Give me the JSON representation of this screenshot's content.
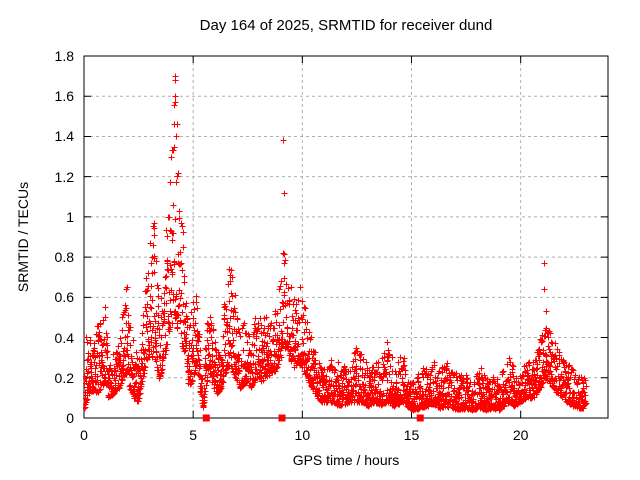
{
  "chart_data": {
    "type": "scatter",
    "title": "Day 164 of 2025, SRMTID for receiver dund",
    "xlabel": "GPS time / hours",
    "ylabel": "SRMTID / TECUs",
    "xlim": [
      0,
      24
    ],
    "ylim": [
      0,
      1.8
    ],
    "xticks": [
      0,
      5,
      10,
      15,
      20
    ],
    "xtick_labels": [
      "0",
      "5",
      "10",
      "15",
      "20"
    ],
    "yticks": [
      0,
      0.2,
      0.4,
      0.6,
      0.8,
      1.0,
      1.2,
      1.4,
      1.6,
      1.8
    ],
    "ytick_labels": [
      "0",
      "0.2",
      "0.4",
      "0.6",
      "0.8",
      "1",
      "1.2",
      "1.4",
      "1.6",
      "1.8"
    ],
    "grid": true,
    "legend": "none",
    "marker": "plus",
    "series_color": "#ff0000",
    "grid_color": "#b0b0b0",
    "border_color": "#000000",
    "sample_step_hours": 0.008,
    "envelope_t_lo_hi": [
      [
        0.0,
        0.03,
        0.42
      ],
      [
        0.25,
        0.14,
        0.38
      ],
      [
        0.55,
        0.12,
        0.45
      ],
      [
        0.8,
        0.15,
        0.5
      ],
      [
        0.95,
        0.18,
        0.55
      ],
      [
        1.1,
        0.1,
        0.33
      ],
      [
        1.35,
        0.12,
        0.34
      ],
      [
        1.6,
        0.15,
        0.38
      ],
      [
        1.8,
        0.2,
        0.55
      ],
      [
        1.95,
        0.22,
        0.66
      ],
      [
        2.1,
        0.15,
        0.6
      ],
      [
        2.3,
        0.1,
        0.36
      ],
      [
        2.5,
        0.08,
        0.3
      ],
      [
        2.7,
        0.2,
        0.55
      ],
      [
        2.9,
        0.3,
        0.76
      ],
      [
        3.1,
        0.3,
        0.95
      ],
      [
        3.25,
        0.28,
        0.97
      ],
      [
        3.45,
        0.2,
        0.55
      ],
      [
        3.6,
        0.25,
        0.7
      ],
      [
        3.8,
        0.35,
        1.05
      ],
      [
        3.95,
        0.45,
        1.3
      ],
      [
        4.05,
        0.48,
        1.6
      ],
      [
        4.15,
        0.5,
        1.72
      ],
      [
        4.25,
        0.45,
        1.55
      ],
      [
        4.35,
        0.42,
        1.3
      ],
      [
        4.5,
        0.35,
        1.0
      ],
      [
        4.65,
        0.3,
        0.62
      ],
      [
        4.8,
        0.15,
        0.45
      ],
      [
        5.0,
        0.2,
        0.6
      ],
      [
        5.15,
        0.25,
        0.65
      ],
      [
        5.3,
        0.15,
        0.4
      ],
      [
        5.45,
        0.05,
        0.18
      ],
      [
        5.6,
        0.15,
        0.45
      ],
      [
        5.75,
        0.25,
        0.66
      ],
      [
        5.9,
        0.15,
        0.45
      ],
      [
        6.1,
        0.12,
        0.35
      ],
      [
        6.3,
        0.15,
        0.45
      ],
      [
        6.55,
        0.25,
        0.7
      ],
      [
        6.75,
        0.25,
        0.75
      ],
      [
        6.95,
        0.2,
        0.6
      ],
      [
        7.15,
        0.15,
        0.42
      ],
      [
        7.4,
        0.18,
        0.5
      ],
      [
        7.65,
        0.15,
        0.4
      ],
      [
        7.9,
        0.2,
        0.56
      ],
      [
        8.1,
        0.18,
        0.5
      ],
      [
        8.35,
        0.2,
        0.56
      ],
      [
        8.6,
        0.22,
        0.5
      ],
      [
        8.85,
        0.25,
        0.55
      ],
      [
        9.0,
        0.3,
        0.7
      ],
      [
        9.15,
        0.35,
        0.9
      ],
      [
        9.3,
        0.35,
        0.85
      ],
      [
        9.45,
        0.3,
        0.7
      ],
      [
        9.6,
        0.25,
        0.6
      ],
      [
        9.8,
        0.28,
        0.62
      ],
      [
        10.0,
        0.25,
        0.6
      ],
      [
        10.2,
        0.2,
        0.5
      ],
      [
        10.45,
        0.15,
        0.43
      ],
      [
        10.7,
        0.1,
        0.3
      ],
      [
        10.9,
        0.08,
        0.25
      ],
      [
        11.2,
        0.08,
        0.3
      ],
      [
        11.5,
        0.07,
        0.32
      ],
      [
        11.8,
        0.06,
        0.25
      ],
      [
        12.1,
        0.08,
        0.28
      ],
      [
        12.45,
        0.08,
        0.35
      ],
      [
        12.75,
        0.08,
        0.33
      ],
      [
        13.0,
        0.06,
        0.25
      ],
      [
        13.3,
        0.08,
        0.3
      ],
      [
        13.6,
        0.06,
        0.28
      ],
      [
        13.9,
        0.08,
        0.38
      ],
      [
        14.2,
        0.06,
        0.28
      ],
      [
        14.6,
        0.08,
        0.32
      ],
      [
        14.9,
        0.05,
        0.22
      ],
      [
        15.1,
        0.04,
        0.18
      ],
      [
        15.4,
        0.05,
        0.25
      ],
      [
        15.7,
        0.06,
        0.28
      ],
      [
        16.0,
        0.07,
        0.3
      ],
      [
        16.3,
        0.05,
        0.25
      ],
      [
        16.6,
        0.06,
        0.28
      ],
      [
        16.9,
        0.05,
        0.25
      ],
      [
        17.2,
        0.04,
        0.22
      ],
      [
        17.5,
        0.05,
        0.24
      ],
      [
        17.8,
        0.04,
        0.2
      ],
      [
        18.1,
        0.05,
        0.25
      ],
      [
        18.4,
        0.04,
        0.2
      ],
      [
        18.7,
        0.05,
        0.22
      ],
      [
        19.0,
        0.04,
        0.2
      ],
      [
        19.3,
        0.06,
        0.28
      ],
      [
        19.5,
        0.08,
        0.31
      ],
      [
        19.7,
        0.06,
        0.25
      ],
      [
        20.0,
        0.08,
        0.24
      ],
      [
        20.3,
        0.1,
        0.28
      ],
      [
        20.6,
        0.1,
        0.28
      ],
      [
        20.9,
        0.15,
        0.4
      ],
      [
        21.1,
        0.2,
        0.5
      ],
      [
        21.3,
        0.18,
        0.45
      ],
      [
        21.5,
        0.15,
        0.4
      ],
      [
        21.7,
        0.12,
        0.35
      ],
      [
        21.9,
        0.1,
        0.3
      ],
      [
        22.1,
        0.08,
        0.28
      ],
      [
        22.4,
        0.06,
        0.25
      ],
      [
        22.7,
        0.05,
        0.22
      ],
      [
        22.98,
        0.05,
        0.2
      ]
    ],
    "notable_points": [
      [
        4.17,
        1.7
      ],
      [
        4.16,
        1.6
      ],
      [
        4.19,
        1.57
      ],
      [
        4.13,
        1.46
      ],
      [
        4.22,
        1.4
      ],
      [
        4.1,
        1.35
      ],
      [
        9.13,
        1.38
      ],
      [
        9.18,
        1.12
      ],
      [
        3.22,
        0.97
      ],
      [
        21.08,
        0.77
      ],
      [
        21.06,
        0.64
      ],
      [
        21.14,
        0.53
      ],
      [
        18.2,
        0.25
      ],
      [
        6.62,
        0.74
      ],
      [
        9.9,
        0.65
      ],
      [
        0.95,
        0.55
      ],
      [
        1.95,
        0.65
      ],
      [
        13.9,
        0.38
      ]
    ],
    "square_markers_hours_at_y0": [
      5.6,
      9.07,
      15.4
    ]
  }
}
